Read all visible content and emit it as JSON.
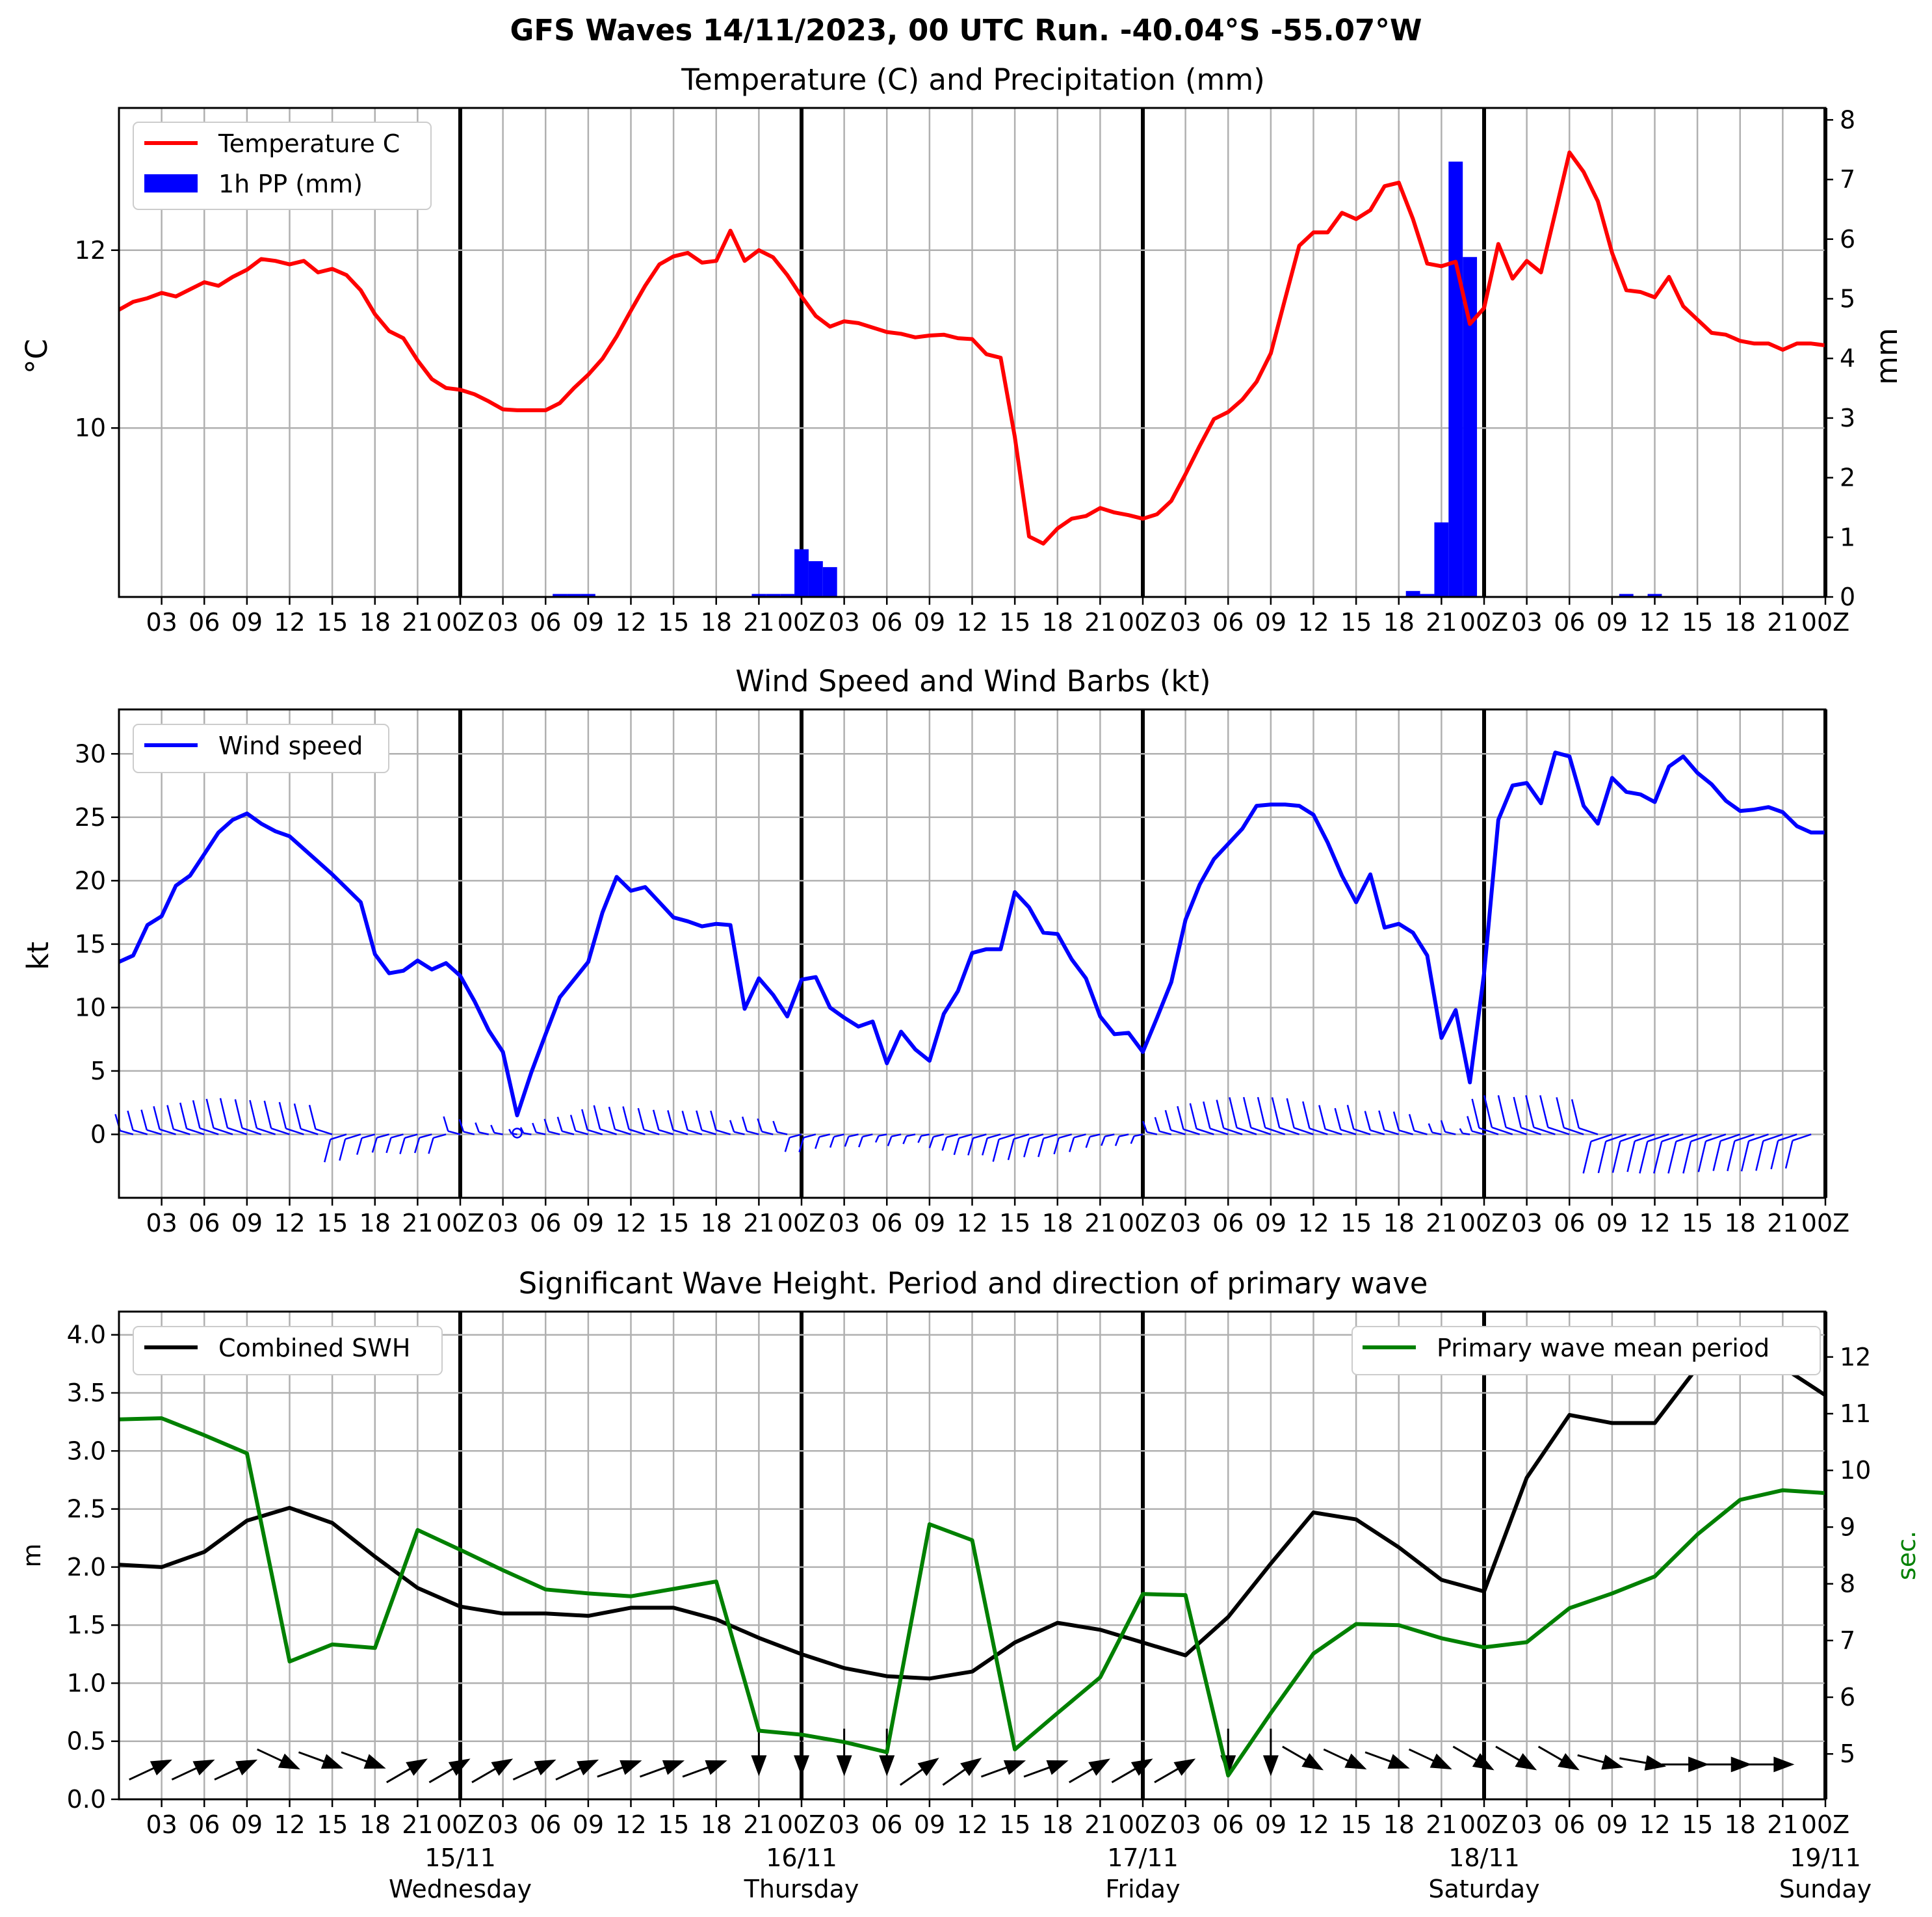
{
  "title": "GFS Waves 14/11/2023, 00 UTC Run. -40.04°S -55.07°W",
  "colors": {
    "temp": "#ff0000",
    "precip": "#0000ff",
    "wind": "#0000ff",
    "swh": "#000000",
    "period": "#008000"
  },
  "time_ticks": [
    "03",
    "06",
    "09",
    "12",
    "15",
    "18",
    "21",
    "00Z",
    "03",
    "06",
    "09",
    "12",
    "15",
    "18",
    "21",
    "00Z",
    "03",
    "06",
    "09",
    "12",
    "15",
    "18",
    "21",
    "00Z",
    "03",
    "06",
    "09",
    "12",
    "15",
    "18",
    "21",
    "00Z",
    "03",
    "06",
    "09",
    "12",
    "15",
    "18",
    "21",
    "00Z"
  ],
  "date_labels": [
    {
      "date": "15/11",
      "day": "Wednesday",
      "hour": 24
    },
    {
      "date": "16/11",
      "day": "Thursday",
      "hour": 48
    },
    {
      "date": "17/11",
      "day": "Friday",
      "hour": 72
    },
    {
      "date": "18/11",
      "day": "Saturday",
      "hour": 96
    },
    {
      "date": "19/11",
      "day": "Sunday",
      "hour": 120
    }
  ],
  "chart_data": [
    {
      "type": "line",
      "title": "Temperature (C) and Precipitation (mm)",
      "ylabel": "°C",
      "ylabel_right": "mm",
      "ylim": [
        8.1,
        13.6
      ],
      "ylim_right": [
        0,
        8.2
      ],
      "yticks": [
        10,
        12
      ],
      "yticks_right": [
        0,
        1,
        2,
        3,
        4,
        5,
        6,
        7,
        8
      ],
      "grid": true,
      "legend": "top-left",
      "series": [
        {
          "name": "Temperature C",
          "x": [
            0,
            1,
            2,
            3,
            4,
            5,
            6,
            7,
            8,
            9,
            10,
            11,
            12,
            13,
            14,
            15,
            16,
            17,
            18,
            19,
            20,
            21,
            22,
            23,
            24,
            25,
            26,
            27,
            28,
            29,
            30,
            31,
            32,
            33,
            34,
            35,
            36,
            37,
            38,
            39,
            40,
            41,
            42,
            43,
            44,
            45,
            46,
            47,
            48,
            49,
            50,
            51,
            52,
            53,
            54,
            55,
            56,
            57,
            58,
            59,
            60,
            61,
            62,
            63,
            64,
            65,
            66,
            67,
            68,
            69,
            70,
            71,
            72,
            73,
            74,
            75,
            76,
            77,
            78,
            79,
            80,
            81,
            82,
            83,
            84,
            85,
            86,
            87,
            88,
            89,
            90,
            91,
            92,
            93,
            94,
            95,
            96,
            97,
            98,
            99,
            100,
            101,
            102,
            103,
            104,
            105,
            106,
            107,
            108,
            109,
            110,
            111,
            112,
            113,
            114,
            115,
            116,
            117,
            118,
            119,
            120
          ],
          "values": [
            11.33,
            11.42,
            11.46,
            11.52,
            11.48,
            11.56,
            11.64,
            11.6,
            11.7,
            11.78,
            11.9,
            11.88,
            11.84,
            11.88,
            11.75,
            11.79,
            11.72,
            11.55,
            11.28,
            11.09,
            11.01,
            10.76,
            10.55,
            10.45,
            10.43,
            10.38,
            10.3,
            10.21,
            10.2,
            10.2,
            10.2,
            10.28,
            10.45,
            10.6,
            10.78,
            11.03,
            11.32,
            11.6,
            11.84,
            11.93,
            11.97,
            11.86,
            11.88,
            12.22,
            11.88,
            12.0,
            11.92,
            11.72,
            11.48,
            11.26,
            11.14,
            11.2,
            11.18,
            11.13,
            11.08,
            11.06,
            11.02,
            11.04,
            11.05,
            11.01,
            11.0,
            10.83,
            10.79,
            9.9,
            8.78,
            8.7,
            8.87,
            8.98,
            9.01,
            9.1,
            9.05,
            9.02,
            8.98,
            9.03,
            9.18,
            9.48,
            9.8,
            10.1,
            10.18,
            10.32,
            10.52,
            10.84,
            11.45,
            12.05,
            12.2,
            12.2,
            12.42,
            12.35,
            12.45,
            12.72,
            12.76,
            12.35,
            11.85,
            11.82,
            11.87,
            11.17,
            11.35,
            12.07,
            11.68,
            11.88,
            11.75,
            12.42,
            13.1,
            12.88,
            12.55,
            11.97,
            11.55,
            11.53,
            11.47,
            11.7,
            11.37,
            11.22,
            11.07,
            11.05,
            10.98,
            10.95,
            10.95,
            10.88,
            10.95,
            10.95,
            10.93
          ]
        },
        {
          "name": "1h PP (mm)",
          "type": "bar",
          "x": [
            31,
            32,
            33,
            45,
            46,
            47,
            48,
            49,
            50,
            51,
            91,
            92,
            93,
            94,
            95,
            106,
            108
          ],
          "values": [
            0.05,
            0.05,
            0.05,
            0.05,
            0.05,
            0.05,
            0.8,
            0.6,
            0.5,
            0,
            0.1,
            0.05,
            1.25,
            7.3,
            5.7,
            0.05,
            0.05
          ]
        }
      ]
    },
    {
      "type": "line",
      "title": "Wind Speed and Wind Barbs (kt)",
      "ylabel": "kt",
      "ylim": [
        -5,
        33.5
      ],
      "yticks": [
        0,
        5,
        10,
        15,
        20,
        25,
        30
      ],
      "grid": true,
      "legend": "top-left",
      "series": [
        {
          "name": "Wind speed",
          "x": [
            0,
            1,
            2,
            3,
            4,
            5,
            6,
            7,
            8,
            9,
            10,
            11,
            12,
            13,
            14,
            15,
            16,
            17,
            18,
            19,
            20,
            21,
            22,
            23,
            24,
            25,
            26,
            27,
            28,
            29,
            30,
            31,
            32,
            33,
            34,
            35,
            36,
            37,
            38,
            39,
            40,
            41,
            42,
            43,
            44,
            45,
            46,
            47,
            48,
            49,
            50,
            51,
            52,
            53,
            54,
            55,
            56,
            57,
            58,
            59,
            60,
            61,
            62,
            63,
            64,
            65,
            66,
            67,
            68,
            69,
            70,
            71,
            72,
            73,
            74,
            75,
            76,
            77,
            78,
            79,
            80,
            81,
            82,
            83,
            84,
            85,
            86,
            87,
            88,
            89,
            90,
            91,
            92,
            93,
            94,
            95,
            96,
            97,
            98,
            99,
            100,
            101,
            102,
            103,
            104,
            105,
            106,
            107,
            108,
            109,
            110,
            111,
            112,
            113,
            114,
            115,
            116,
            117,
            118,
            119,
            120
          ],
          "values": [
            13.6,
            14.1,
            16.5,
            17.2,
            19.6,
            20.4,
            22.1,
            23.8,
            24.8,
            25.3,
            24.5,
            23.9,
            23.5,
            22.5,
            21.5,
            20.5,
            19.4,
            18.3,
            14.2,
            12.7,
            12.9,
            13.7,
            13.0,
            13.5,
            12.5,
            10.5,
            8.2,
            6.5,
            1.5,
            4.9,
            7.9,
            10.8,
            12.2,
            13.6,
            17.5,
            20.3,
            19.2,
            19.5,
            18.3,
            17.1,
            16.8,
            16.4,
            16.6,
            16.5,
            9.9,
            12.3,
            11.0,
            9.3,
            12.2,
            12.4,
            10.0,
            9.2,
            8.5,
            8.9,
            5.6,
            8.1,
            6.7,
            5.8,
            9.5,
            11.3,
            14.3,
            14.6,
            14.6,
            19.1,
            17.9,
            15.9,
            15.8,
            13.8,
            12.3,
            9.3,
            7.9,
            8.0,
            6.5,
            9.2,
            12.0,
            16.9,
            19.7,
            21.7,
            22.9,
            24.1,
            25.9,
            26.0,
            26.0,
            25.9,
            25.2,
            23.0,
            20.4,
            18.3,
            20.5,
            16.3,
            16.6,
            15.9,
            14.1,
            7.6,
            9.8,
            4.1,
            12.7,
            24.8,
            27.5,
            27.7,
            26.1,
            30.1,
            29.8,
            25.9,
            24.5,
            28.1,
            27.0,
            26.8,
            26.2,
            29.0,
            29.8,
            28.5,
            27.6,
            26.3,
            25.5,
            25.6,
            25.8,
            25.4,
            24.3,
            23.8,
            23.8
          ]
        }
      ]
    },
    {
      "type": "line",
      "title": "Significant Wave Height. Period and direction of primary wave",
      "ylabel": "m",
      "ylabel_right": "sec.",
      "ylim": [
        0,
        4.2
      ],
      "ylim_right": [
        4.2,
        12.8
      ],
      "yticks": [
        0.0,
        0.5,
        1.0,
        1.5,
        2.0,
        2.5,
        3.0,
        3.5,
        4.0
      ],
      "yticks_right": [
        5,
        6,
        7,
        8,
        9,
        10,
        11,
        12
      ],
      "grid": true,
      "series": [
        {
          "name": "Combined SWH",
          "x": [
            0,
            3,
            6,
            9,
            12,
            15,
            18,
            21,
            24,
            27,
            30,
            33,
            36,
            39,
            42,
            45,
            48,
            51,
            54,
            57,
            60,
            63,
            66,
            69,
            72,
            75,
            78,
            81,
            84,
            87,
            90,
            93,
            96,
            99,
            102,
            105,
            108,
            111,
            114,
            117,
            120
          ],
          "values": [
            2.02,
            2.0,
            2.13,
            2.4,
            2.51,
            2.38,
            2.09,
            1.82,
            1.66,
            1.6,
            1.6,
            1.58,
            1.65,
            1.65,
            1.55,
            1.39,
            1.25,
            1.13,
            1.06,
            1.04,
            1.1,
            1.35,
            1.52,
            1.46,
            1.35,
            1.24,
            1.57,
            2.03,
            2.47,
            2.41,
            2.17,
            1.89,
            1.79,
            2.77,
            3.31,
            3.24,
            3.24,
            3.72,
            3.82,
            3.72,
            3.48
          ]
        },
        {
          "name": "Primary wave mean period",
          "x": [
            0,
            3,
            6,
            9,
            12,
            15,
            18,
            21,
            24,
            27,
            30,
            33,
            36,
            39,
            42,
            45,
            48,
            51,
            54,
            57,
            60,
            63,
            66,
            69,
            72,
            75,
            78,
            81,
            84,
            87,
            90,
            93,
            96,
            99,
            102,
            105,
            108,
            111,
            114,
            117,
            120
          ],
          "values": [
            10.9,
            10.92,
            10.62,
            10.3,
            6.63,
            6.93,
            6.87,
            8.95,
            8.6,
            8.24,
            7.9,
            7.83,
            7.78,
            7.91,
            8.04,
            5.41,
            5.34,
            5.21,
            5.03,
            9.05,
            8.77,
            5.08,
            5.72,
            6.35,
            7.82,
            7.8,
            4.62,
            5.72,
            6.77,
            7.29,
            7.27,
            7.04,
            6.88,
            6.97,
            7.57,
            7.83,
            8.13,
            8.87,
            9.48,
            9.65,
            9.6
          ]
        }
      ]
    }
  ]
}
